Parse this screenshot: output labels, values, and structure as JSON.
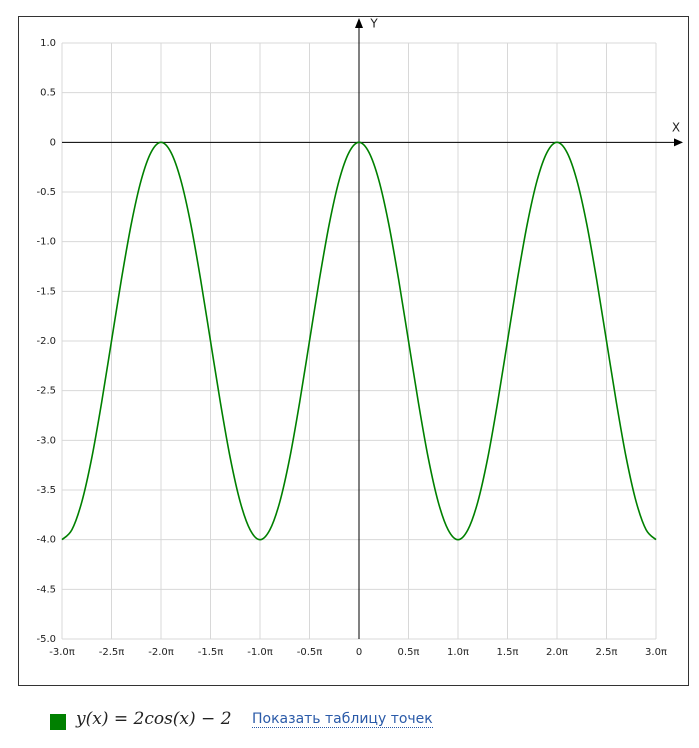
{
  "chart_data": {
    "type": "line",
    "x_label": "X",
    "y_label": "Y",
    "x": [
      -3,
      -2.9,
      -2.8,
      -2.7,
      -2.6,
      -2.5,
      -2.4,
      -2.3,
      -2.2,
      -2.1,
      -2,
      -1.9,
      -1.8,
      -1.7,
      -1.6,
      -1.5,
      -1.4,
      -1.3,
      -1.2,
      -1.1,
      -1,
      -0.9,
      -0.8,
      -0.7,
      -0.6,
      -0.5,
      -0.4,
      -0.3,
      -0.2,
      -0.1,
      0,
      0.1,
      0.2,
      0.3,
      0.4,
      0.5,
      0.6,
      0.7,
      0.8,
      0.9,
      1,
      1.1,
      1.2,
      1.3,
      1.4,
      1.5,
      1.6,
      1.7,
      1.8,
      1.9,
      2,
      2.1,
      2.2,
      2.3,
      2.4,
      2.5,
      2.6,
      2.7,
      2.8,
      2.9,
      3
    ],
    "series": [
      {
        "name": "y(x) = 2cos(x) − 2",
        "color": "#008000",
        "values": [
          -4,
          -3.9,
          -3.62,
          -3.18,
          -2.62,
          -2,
          -1.38,
          -0.82,
          -0.38,
          -0.1,
          0,
          -0.1,
          -0.38,
          -0.82,
          -1.38,
          -2,
          -2.62,
          -3.18,
          -3.62,
          -3.9,
          -4,
          -3.9,
          -3.62,
          -3.18,
          -2.62,
          -2,
          -1.38,
          -0.82,
          -0.38,
          -0.1,
          0,
          -0.1,
          -0.38,
          -0.82,
          -1.38,
          -2,
          -2.62,
          -3.18,
          -3.62,
          -3.9,
          -4,
          -3.9,
          -3.62,
          -3.18,
          -2.62,
          -2,
          -1.38,
          -0.82,
          -0.38,
          -0.1,
          0,
          -0.1,
          -0.38,
          -0.82,
          -1.38,
          -2,
          -2.62,
          -3.18,
          -3.62,
          -3.9,
          -4
        ]
      }
    ],
    "xlim": [
      -3,
      3
    ],
    "ylim": [
      -5,
      1
    ],
    "xticks": [
      {
        "value": -3,
        "label": "-3.0π"
      },
      {
        "value": -2.5,
        "label": "-2.5π"
      },
      {
        "value": -2,
        "label": "-2.0π"
      },
      {
        "value": -1.5,
        "label": "-1.5π"
      },
      {
        "value": -1,
        "label": "-1.0π"
      },
      {
        "value": -0.5,
        "label": "-0.5π"
      },
      0,
      {
        "value": 0.5,
        "label": "0.5π"
      },
      {
        "value": 1,
        "label": "1.0π"
      },
      {
        "value": 1.5,
        "label": "1.5π"
      },
      {
        "value": 2,
        "label": "2.0π"
      },
      {
        "value": 2.5,
        "label": "2.5π"
      },
      {
        "value": 3,
        "label": "3.0π"
      }
    ],
    "yticks": [
      {
        "value": 1,
        "label": "1.0"
      },
      0.5,
      0,
      -0.5,
      {
        "value": -1,
        "label": "-1.0"
      },
      -1.5,
      {
        "value": -2,
        "label": "-2.0"
      },
      -2.5,
      {
        "value": -3,
        "label": "-3.0"
      },
      -3.5,
      {
        "value": -4,
        "label": "-4.0"
      },
      -4.5,
      {
        "value": -5,
        "label": "-5.0"
      }
    ],
    "grid": true
  },
  "link_text": "Показать таблицу точек"
}
